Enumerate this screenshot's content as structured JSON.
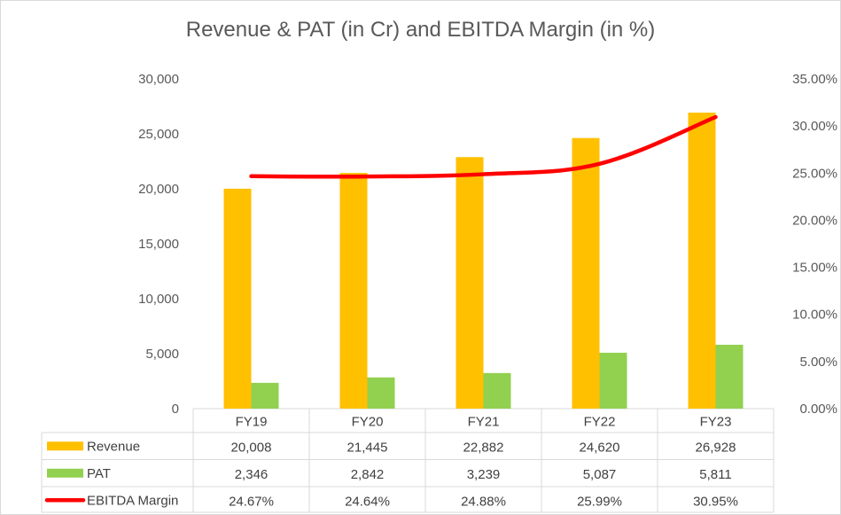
{
  "chart_data": {
    "type": "bar",
    "title": "Revenue & PAT (in Cr) and EBITDA Margin (in %)",
    "categories": [
      "FY19",
      "FY20",
      "FY21",
      "FY22",
      "FY23"
    ],
    "series": [
      {
        "name": "Revenue",
        "kind": "bar",
        "axis": "left",
        "color": "#ffc000",
        "values": [
          20008,
          21445,
          22882,
          24620,
          26928
        ],
        "labels": [
          "20,008",
          "21,445",
          "22,882",
          "24,620",
          "26,928"
        ]
      },
      {
        "name": "PAT",
        "kind": "bar",
        "axis": "left",
        "color": "#92d050",
        "values": [
          2346,
          2842,
          3239,
          5087,
          5811
        ],
        "labels": [
          "2,346",
          "2,842",
          "3,239",
          "5,087",
          "5,811"
        ]
      },
      {
        "name": "EBITDA Margin",
        "kind": "line",
        "axis": "right",
        "color": "#ff0000",
        "values": [
          24.67,
          24.64,
          24.88,
          25.99,
          30.95
        ],
        "labels": [
          "24.67%",
          "24.64%",
          "24.88%",
          "25.99%",
          "30.95%"
        ]
      }
    ],
    "left_axis": {
      "ylim": [
        0,
        30000
      ],
      "ticks": [
        "0",
        "5,000",
        "10,000",
        "15,000",
        "20,000",
        "25,000",
        "30,000"
      ]
    },
    "right_axis": {
      "ylim": [
        0,
        35
      ],
      "ticks": [
        "0.00%",
        "5.00%",
        "10.00%",
        "15.00%",
        "20.00%",
        "25.00%",
        "30.00%",
        "35.00%"
      ]
    },
    "data_table": true,
    "grid": false
  }
}
